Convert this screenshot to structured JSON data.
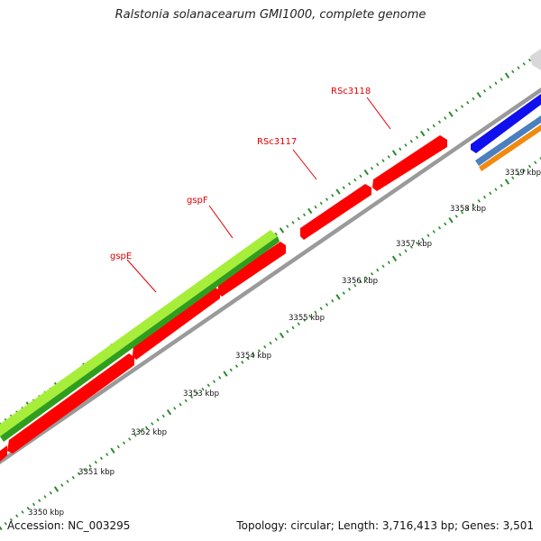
{
  "title": "Ralstonia solanacearum GMI1000, complete genome",
  "footer": {
    "accession": "Accession: NC_003295",
    "summary": "Topology: circular; Length: 3,716,413 bp; Genes: 3,501"
  },
  "gene_labels": [
    "gspE",
    "gspF",
    "RSc3117",
    "RSc3118"
  ],
  "kbp_labels": [
    "3350 kbp",
    "3351 kbp",
    "3352 kbp",
    "3353 kbp",
    "3354 kbp",
    "3355 kbp",
    "3356 kbp",
    "3357 kbp",
    "3358 kbp",
    "3359 kbp"
  ],
  "colors": {
    "cds_red": "#ff0000",
    "gsp_green": "#2f9e1e",
    "gsp_lightgreen": "#a6ee3a",
    "blue": "#1010ee",
    "steelblue": "#4a7fc0",
    "orange": "#f08a10",
    "backbone": "#9a9a9a",
    "tick": "#2a8a2a"
  }
}
